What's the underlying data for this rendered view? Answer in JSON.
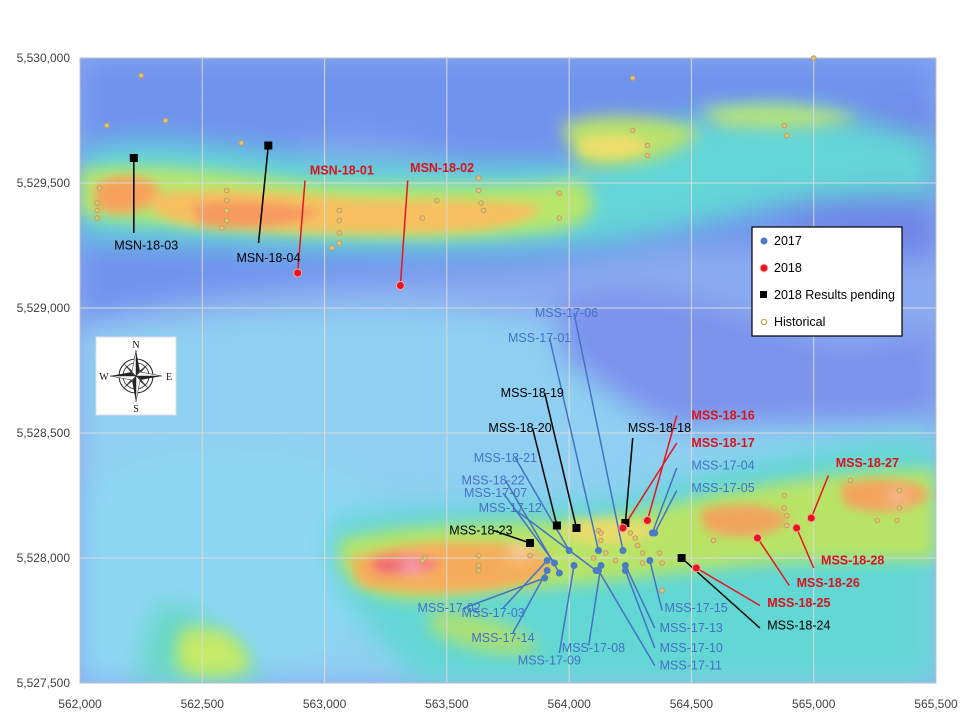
{
  "colors": {
    "c2017": "#4a7cc4",
    "c2018": "#e8141e",
    "pending": "#000000",
    "historical": "#c8a04a",
    "label2017": "#4472c4",
    "label2018": "#d9141c",
    "labelPending": "#000000"
  },
  "axes": {
    "x_ticks": [
      "562,000",
      "562,500",
      "563,000",
      "563,500",
      "564,000",
      "564,500",
      "565,000",
      "565,500"
    ],
    "y_ticks": [
      "5,530,000",
      "5,529,500",
      "5,529,000",
      "5,528,500",
      "5,528,000",
      "5,527,500"
    ],
    "xlim": [
      562000,
      565500
    ],
    "ylim": [
      5527500,
      5530000
    ]
  },
  "legend": {
    "items": [
      {
        "label": "2017",
        "kind": "2017"
      },
      {
        "label": "2018",
        "kind": "2018"
      },
      {
        "label": "2018 Results pending",
        "kind": "pending"
      },
      {
        "label": "Historical",
        "kind": "historical"
      }
    ]
  },
  "compass": {
    "n": "N",
    "s": "S",
    "e": "E",
    "w": "W",
    "icon": "compass-rose-icon"
  },
  "holes": [
    {
      "id": "MSN-18-03",
      "kind": "pending",
      "collar": [
        562220,
        5529600
      ],
      "end": [
        562220,
        5529300
      ],
      "label": [
        562140,
        5529250
      ],
      "bold": false
    },
    {
      "id": "MSN-18-04",
      "kind": "pending",
      "collar": [
        562770,
        5529650
      ],
      "end": [
        562730,
        5529260
      ],
      "label": [
        562640,
        5529200
      ],
      "bold": false
    },
    {
      "id": "MSN-18-01",
      "kind": "2018",
      "collar": [
        562890,
        5529140
      ],
      "end": [
        562920,
        5529510
      ],
      "label": [
        562940,
        5529550
      ],
      "bold": true
    },
    {
      "id": "MSN-18-02",
      "kind": "2018",
      "collar": [
        563310,
        5529090
      ],
      "end": [
        563340,
        5529510
      ],
      "label": [
        563350,
        5529560
      ],
      "bold": true
    },
    {
      "id": "MSS-17-06",
      "kind": "2017",
      "collar": [
        564220,
        5528030
      ],
      "end": [
        564020,
        5528980
      ],
      "label": [
        563860,
        5528980
      ],
      "bold": false
    },
    {
      "id": "MSS-17-01",
      "kind": "2017",
      "collar": [
        564120,
        5528030
      ],
      "end": [
        563920,
        5528880
      ],
      "label": [
        563750,
        5528880
      ],
      "bold": false
    },
    {
      "id": "MSS-18-19",
      "kind": "pending",
      "collar": [
        564030,
        5528120
      ],
      "end": [
        563900,
        5528660
      ],
      "label": [
        563720,
        5528660
      ],
      "bold": false
    },
    {
      "id": "MSS-18-20",
      "kind": "pending",
      "collar": [
        563950,
        5528130
      ],
      "end": [
        563850,
        5528520
      ],
      "label": [
        563670,
        5528520
      ],
      "bold": false
    },
    {
      "id": "MSS-18-21",
      "kind": "2017",
      "collar": [
        564000,
        5528030
      ],
      "end": [
        563780,
        5528400
      ],
      "label": [
        563610,
        5528400
      ],
      "bold": false
    },
    {
      "id": "MSS-18-22",
      "kind": "2017",
      "collar": [
        563960,
        5527940
      ],
      "end": [
        563740,
        5528310
      ],
      "label": [
        563560,
        5528310
      ],
      "bold": false
    },
    {
      "id": "MSS-17-07",
      "kind": "2017",
      "collar": [
        563940,
        5527980
      ],
      "end": [
        563730,
        5528260
      ],
      "label": [
        563570,
        5528260
      ],
      "bold": false
    },
    {
      "id": "MSS-17-12",
      "kind": "2017",
      "collar": [
        564110,
        5527950
      ],
      "end": [
        563770,
        5528200
      ],
      "label": [
        563630,
        5528200
      ],
      "bold": false
    },
    {
      "id": "MSS-18-23",
      "kind": "pending",
      "collar": [
        563840,
        5528060
      ],
      "end": [
        563690,
        5528110
      ],
      "label": [
        563510,
        5528110
      ],
      "bold": false
    },
    {
      "id": "MSS-18-18",
      "kind": "pending",
      "collar": [
        564230,
        5528140
      ],
      "end": [
        564260,
        5528480
      ],
      "label": [
        564240,
        5528520
      ],
      "bold": false
    },
    {
      "id": "MSS-18-16",
      "kind": "2018",
      "collar": [
        564320,
        5528150
      ],
      "end": [
        564440,
        5528570
      ],
      "label": [
        564500,
        5528570
      ],
      "bold": true
    },
    {
      "id": "MSS-18-17",
      "kind": "2018",
      "collar": [
        564220,
        5528120
      ],
      "end": [
        564440,
        5528460
      ],
      "label": [
        564500,
        5528460
      ],
      "bold": true
    },
    {
      "id": "MSS-17-04",
      "kind": "2017",
      "collar": [
        564340,
        5528100
      ],
      "end": [
        564440,
        5528360
      ],
      "label": [
        564500,
        5528370
      ],
      "bold": false
    },
    {
      "id": "MSS-17-05",
      "kind": "2017",
      "collar": [
        564350,
        5528100
      ],
      "end": [
        564440,
        5528270
      ],
      "label": [
        564500,
        5528280
      ],
      "bold": false
    },
    {
      "id": "MSS-18-27",
      "kind": "2018",
      "collar": [
        564990,
        5528160
      ],
      "end": [
        565060,
        5528330
      ],
      "label": [
        565090,
        5528380
      ],
      "bold": true
    },
    {
      "id": "MSS-18-28",
      "kind": "2018",
      "collar": [
        564930,
        5528120
      ],
      "end": [
        565000,
        5527960
      ],
      "label": [
        565030,
        5527990
      ],
      "bold": true
    },
    {
      "id": "MSS-18-26",
      "kind": "2018",
      "collar": [
        564770,
        5528080
      ],
      "end": [
        564900,
        5527890
      ],
      "label": [
        564930,
        5527900
      ],
      "bold": true
    },
    {
      "id": "MSS-18-25",
      "kind": "2018",
      "collar": [
        564520,
        5527960
      ],
      "end": [
        564780,
        5527810
      ],
      "label": [
        564810,
        5527820
      ],
      "bold": true
    },
    {
      "id": "MSS-18-24",
      "kind": "pending",
      "collar": [
        564460,
        5528000
      ],
      "end": [
        564780,
        5527720
      ],
      "label": [
        564810,
        5527730
      ],
      "bold": false
    },
    {
      "id": "MSS-17-15",
      "kind": "2017",
      "collar": [
        564330,
        5527990
      ],
      "end": [
        564380,
        5527790
      ],
      "label": [
        564390,
        5527800
      ],
      "bold": false
    },
    {
      "id": "MSS-17-13",
      "kind": "2017",
      "collar": [
        564230,
        5527970
      ],
      "end": [
        564350,
        5527720
      ],
      "label": [
        564370,
        5527720
      ],
      "bold": false
    },
    {
      "id": "MSS-17-10",
      "kind": "2017",
      "collar": [
        564230,
        5527950
      ],
      "end": [
        564350,
        5527640
      ],
      "label": [
        564370,
        5527640
      ],
      "bold": false
    },
    {
      "id": "MSS-17-11",
      "kind": "2017",
      "collar": [
        564120,
        5527950
      ],
      "end": [
        564350,
        5527570
      ],
      "label": [
        564370,
        5527570
      ],
      "bold": false
    },
    {
      "id": "MSS-17-08",
      "kind": "2017",
      "collar": [
        564130,
        5527970
      ],
      "end": [
        564080,
        5527650
      ],
      "label": [
        563970,
        5527640
      ],
      "bold": false
    },
    {
      "id": "MSS-17-09",
      "kind": "2017",
      "collar": [
        564020,
        5527970
      ],
      "end": [
        563960,
        5527620
      ],
      "label": [
        563790,
        5527590
      ],
      "bold": false
    },
    {
      "id": "MSS-17-14",
      "kind": "2017",
      "collar": [
        563910,
        5527950
      ],
      "end": [
        563770,
        5527700
      ],
      "label": [
        563600,
        5527680
      ],
      "bold": false
    },
    {
      "id": "MSS-17-03",
      "kind": "2017",
      "collar": [
        563910,
        5527990
      ],
      "end": [
        563730,
        5527800
      ],
      "label": [
        563560,
        5527780
      ],
      "bold": false
    },
    {
      "id": "MSS-17-02",
      "kind": "2017",
      "collar": [
        563900,
        5527920
      ],
      "end": [
        563570,
        5527800
      ],
      "label": [
        563380,
        5527800
      ],
      "bold": false
    }
  ],
  "historical": [
    [
      562080,
      5529480
    ],
    [
      562070,
      5529420
    ],
    [
      562070,
      5529390
    ],
    [
      562070,
      5529360
    ],
    [
      562110,
      5529730
    ],
    [
      562350,
      5529750
    ],
    [
      562250,
      5529930
    ],
    [
      562600,
      5529470
    ],
    [
      562600,
      5529430
    ],
    [
      562600,
      5529390
    ],
    [
      562600,
      5529350
    ],
    [
      562580,
      5529320
    ],
    [
      562660,
      5529660
    ],
    [
      563060,
      5529390
    ],
    [
      563060,
      5529350
    ],
    [
      563060,
      5529300
    ],
    [
      563060,
      5529260
    ],
    [
      563030,
      5529240
    ],
    [
      563400,
      5529360
    ],
    [
      563460,
      5529430
    ],
    [
      563630,
      5529520
    ],
    [
      563630,
      5529470
    ],
    [
      563640,
      5529420
    ],
    [
      563650,
      5529390
    ],
    [
      563960,
      5529460
    ],
    [
      563960,
      5529360
    ],
    [
      564260,
      5529920
    ],
    [
      564260,
      5529710
    ],
    [
      564320,
      5529650
    ],
    [
      564320,
      5529610
    ],
    [
      564880,
      5529730
    ],
    [
      564890,
      5529690
    ],
    [
      565000,
      5530000
    ],
    [
      563400,
      5527990
    ],
    [
      563410,
      5528000
    ],
    [
      563630,
      5528010
    ],
    [
      563630,
      5527970
    ],
    [
      563630,
      5527950
    ],
    [
      563840,
      5528010
    ],
    [
      564120,
      5528110
    ],
    [
      564130,
      5528100
    ],
    [
      564130,
      5528070
    ],
    [
      564250,
      5528100
    ],
    [
      564270,
      5528080
    ],
    [
      564280,
      5528050
    ],
    [
      564300,
      5528020
    ],
    [
      564300,
      5527980
    ],
    [
      564100,
      5528000
    ],
    [
      564150,
      5528020
    ],
    [
      564190,
      5527990
    ],
    [
      564380,
      5527980
    ],
    [
      564370,
      5528020
    ],
    [
      564880,
      5528250
    ],
    [
      564880,
      5528200
    ],
    [
      564890,
      5528170
    ],
    [
      564890,
      5528130
    ],
    [
      565150,
      5528310
    ],
    [
      565350,
      5528270
    ],
    [
      565350,
      5528200
    ],
    [
      565260,
      5528150
    ],
    [
      565340,
      5528150
    ],
    [
      564380,
      5527870
    ],
    [
      564590,
      5528070
    ]
  ]
}
